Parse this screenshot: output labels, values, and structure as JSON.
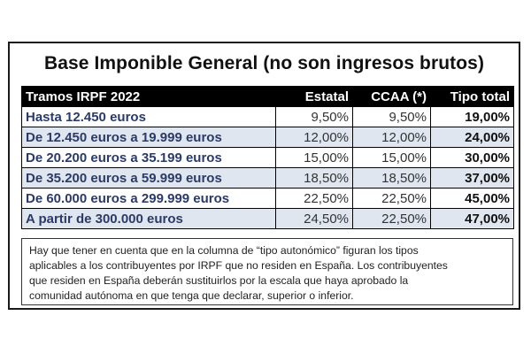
{
  "title": "Base Imponible General (no son ingresos brutos)",
  "table": {
    "headers": {
      "tramo": "Tramos IRPF 2022",
      "estatal": "Estatal",
      "ccaa": "CCAA (*)",
      "total": "Tipo total"
    },
    "rows": [
      {
        "tramo": "Hasta 12.450 euros",
        "estatal": "9,50%",
        "ccaa": "9,50%",
        "total": "19,00%"
      },
      {
        "tramo": "De 12.450 euros a 19.999 euros",
        "estatal": "12,00%",
        "ccaa": "12,00%",
        "total": "24,00%"
      },
      {
        "tramo": "De 20.200 euros a 35.199 euros",
        "estatal": "15,00%",
        "ccaa": "15,00%",
        "total": "30,00%"
      },
      {
        "tramo": "De 35.200 euros a 59.999 euros",
        "estatal": "18,50%",
        "ccaa": "18,50%",
        "total": "37,00%"
      },
      {
        "tramo": "De 60.000 euros a 299.999 euros",
        "estatal": "22,50%",
        "ccaa": "22,50%",
        "total": "45,00%"
      },
      {
        "tramo": "A partir de 300.000 euros",
        "estatal": "24,50%",
        "ccaa": "22,50%",
        "total": "47,00%"
      }
    ]
  },
  "note": {
    "lines": [
      "Hay que tener en cuenta que en la columna de “tipo autonómico” figuran los tipos",
      "aplicables a los contribuyentes por IRPF que no residen en España. Los contribuyentes",
      "que residen en España deberán sustituirlos por la escala que haya aprobado la",
      "comunidad autónoma en que tenga que declarar, superior o inferior."
    ]
  },
  "colors": {
    "header_bg": "#000000",
    "row_alt_bg": "#dfe6f0",
    "tramo_text": "#2b3a66"
  }
}
